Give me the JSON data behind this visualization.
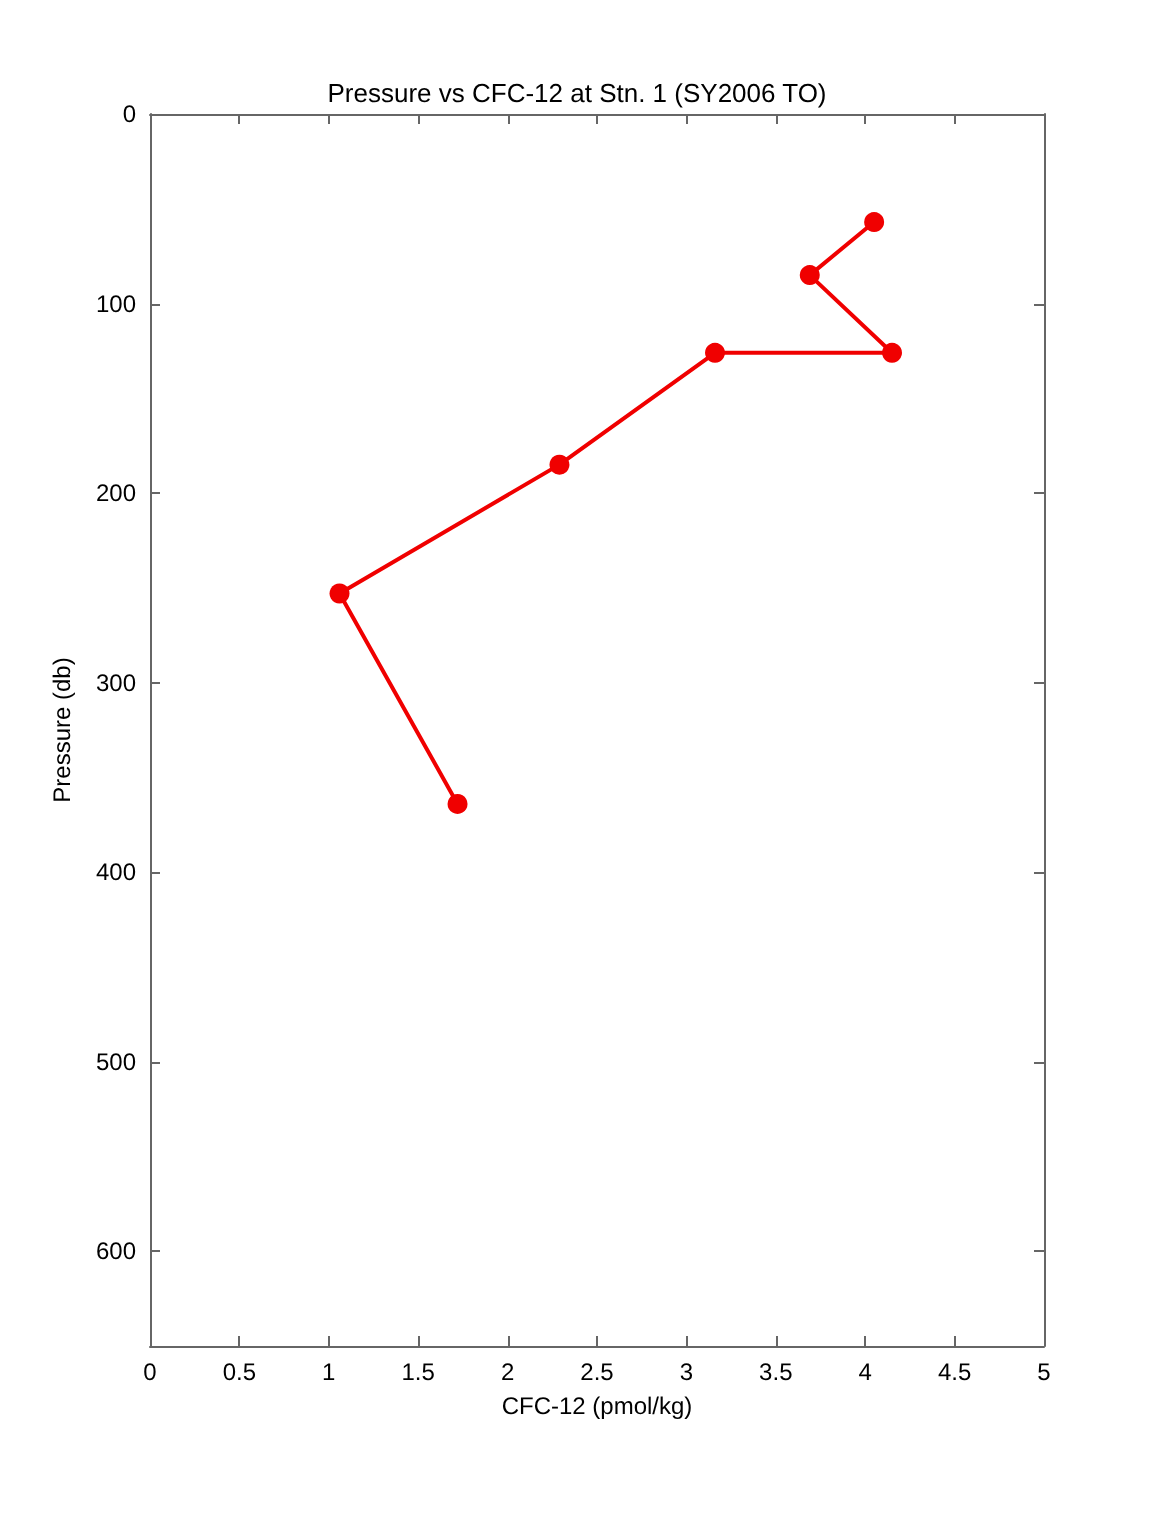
{
  "chart_data": {
    "type": "line",
    "title": "Pressure vs CFC-12 at Stn. 1 (SY2006 TO)",
    "xlabel": "CFC-12 (pmol/kg)",
    "ylabel": "Pressure (db)",
    "x": [
      4.05,
      3.69,
      4.15,
      3.16,
      2.29,
      1.06,
      1.72
    ],
    "series": [
      {
        "color": "#f00000",
        "values": [
          57,
          85,
          126,
          126,
          185,
          253,
          364
        ]
      }
    ],
    "xlim": [
      0,
      5
    ],
    "xticks": [
      0,
      0.5,
      1,
      1.5,
      2,
      2.5,
      3,
      3.5,
      4,
      4.5,
      5
    ],
    "ylim": [
      650,
      0
    ],
    "yticks": [
      0,
      100,
      200,
      300,
      400,
      500,
      600
    ],
    "grid": false,
    "marker": "circle",
    "line_style": "solid"
  }
}
